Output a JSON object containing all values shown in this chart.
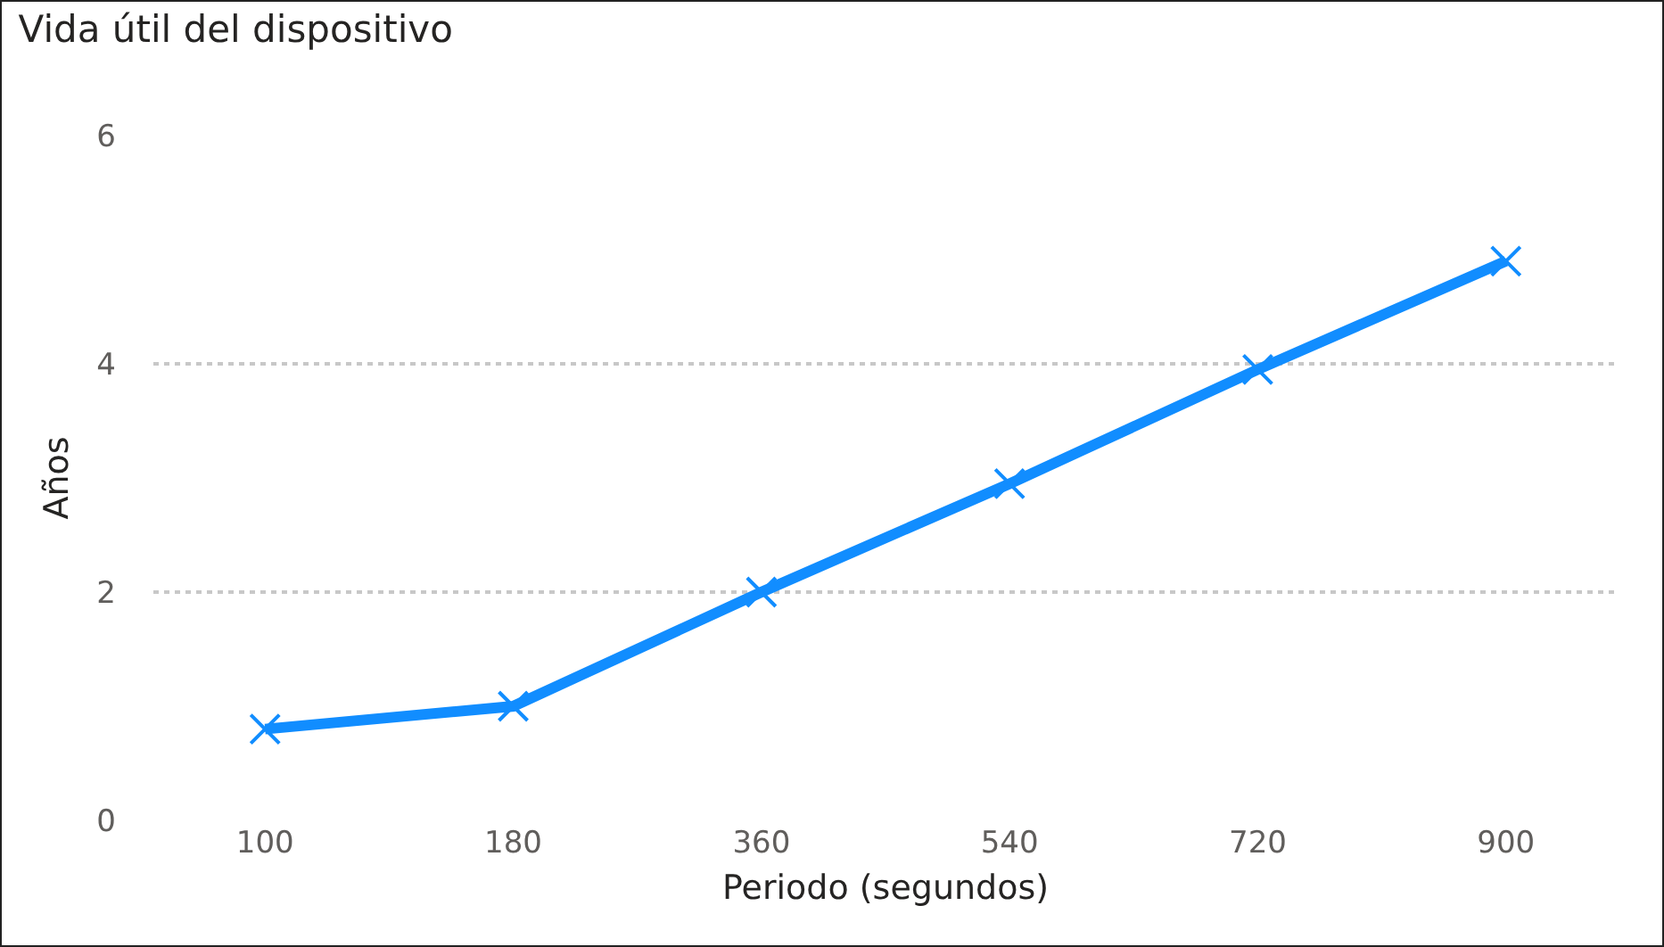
{
  "chart_data": {
    "type": "line",
    "title": "Vida útil del dispositivo",
    "xlabel": "Periodo (segundos)",
    "ylabel": "Años",
    "categories": [
      "100",
      "180",
      "360",
      "540",
      "720",
      "900"
    ],
    "series": [
      {
        "color": "#118dff",
        "values": [
          0.8,
          1,
          2,
          2.95,
          3.95,
          4.9
        ]
      }
    ],
    "ylim": [
      0,
      6
    ],
    "yticks": [
      0,
      2,
      4,
      6
    ],
    "grid": "y",
    "marker": "cross",
    "line_style": "solid",
    "legend": false
  }
}
